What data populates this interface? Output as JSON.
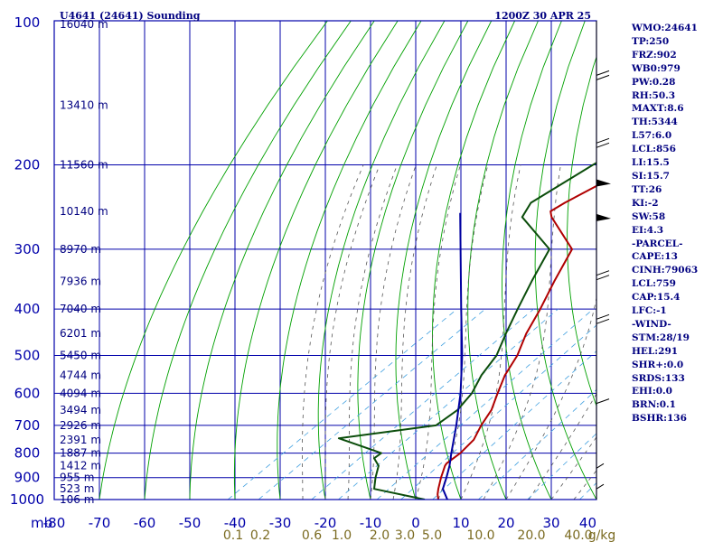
{
  "header": {
    "station": "U4641 (24641) Sounding",
    "valid_time": "1200Z 30 APR 25"
  },
  "indices": [
    "WMO:24641",
    "TP:250",
    "FRZ:902",
    "WB0:979",
    "PW:0.28",
    "RH:50.3",
    "MAXT:8.6",
    "TH:5344",
    "L57:6.0",
    "LCL:856",
    "LI:15.5",
    "SI:15.7",
    "TT:26",
    "KI:-2",
    "SW:58",
    "EI:4.3",
    "-PARCEL-",
    "CAPE:13",
    "CINH:79063",
    "LCL:759",
    "CAP:15.4",
    "LFC:-1",
    "-WIND-",
    "STM:28/19",
    "HEL:291",
    "SHR+:0.0",
    "SRDS:133",
    "EHI:0.0",
    "BRN:0.1",
    "BSHR:136"
  ],
  "chart_data": {
    "type": "skew-t log-p sounding",
    "title": "U4641 (24641) Sounding",
    "xlabel": "",
    "ylabel": "mb",
    "pressure_axis": {
      "unit_label": "mb",
      "scale": "log",
      "range": [
        100,
        1000
      ],
      "ticks": [
        100,
        200,
        300,
        400,
        500,
        600,
        700,
        800,
        900,
        1000
      ]
    },
    "temperature_axis": {
      "range": [
        -80,
        40
      ],
      "ticks": [
        -80,
        -70,
        -60,
        -50,
        -40,
        -30,
        -20,
        -10,
        0,
        10,
        20,
        30,
        40
      ],
      "tick_labels": [
        "-80",
        "-70",
        "-60",
        "-50",
        "-40",
        "-30",
        "-20",
        "-10",
        "0",
        "10",
        "20",
        "30",
        "40"
      ]
    },
    "height_labels": [
      {
        "p": 100,
        "label": "16040 m"
      },
      {
        "p": 150,
        "label": "13410 m"
      },
      {
        "p": 200,
        "label": "11560 m"
      },
      {
        "p": 250,
        "label": "10140 m"
      },
      {
        "p": 300,
        "label": "8970 m"
      },
      {
        "p": 350,
        "label": "7936 m"
      },
      {
        "p": 400,
        "label": "7040 m"
      },
      {
        "p": 450,
        "label": "6201 m"
      },
      {
        "p": 500,
        "label": "5450 m"
      },
      {
        "p": 550,
        "label": "4744 m"
      },
      {
        "p": 600,
        "label": "4094 m"
      },
      {
        "p": 650,
        "label": "3494 m"
      },
      {
        "p": 700,
        "label": "2926 m"
      },
      {
        "p": 750,
        "label": "2391 m"
      },
      {
        "p": 800,
        "label": "1887 m"
      },
      {
        "p": 850,
        "label": "1412 m"
      },
      {
        "p": 900,
        "label": "955 m"
      },
      {
        "p": 950,
        "label": "523 m"
      },
      {
        "p": 1000,
        "label": "106 m"
      }
    ],
    "mixing_ratio_labels": [
      "0.1",
      "0.2",
      "0.6",
      "1.0",
      "2.0",
      "3.0",
      "5.0",
      "10.0",
      "20.0",
      "40.0",
      "g/kg"
    ],
    "mixing_ratio_values": [
      0.1,
      0.2,
      0.6,
      1.0,
      2.0,
      3.0,
      5.0,
      10.0,
      20.0,
      40.0
    ],
    "series": [
      {
        "key": "temperature",
        "color": "#b00000",
        "points": [
          [
            101,
            -53
          ],
          [
            105,
            -53
          ],
          [
            112,
            -52.5
          ],
          [
            150,
            -53
          ],
          [
            190,
            -53
          ],
          [
            205,
            -55.5
          ],
          [
            240,
            -59
          ],
          [
            250,
            -59.5
          ],
          [
            257,
            -57.5
          ],
          [
            300,
            -43
          ],
          [
            350,
            -37
          ],
          [
            400,
            -31.5
          ],
          [
            450,
            -27
          ],
          [
            500,
            -22.2
          ],
          [
            550,
            -18.8
          ],
          [
            600,
            -14.8
          ],
          [
            650,
            -11
          ],
          [
            700,
            -8.5
          ],
          [
            750,
            -5.7
          ],
          [
            800,
            -4.5
          ],
          [
            840,
            -4.4
          ],
          [
            850,
            -4
          ],
          [
            900,
            -1.2
          ],
          [
            950,
            1.7
          ],
          [
            975,
            3.2
          ],
          [
            1000,
            5
          ]
        ]
      },
      {
        "key": "dewpoint",
        "color": "#0b4d0b",
        "points": [
          [
            101,
            -74
          ],
          [
            150,
            -66
          ],
          [
            180,
            -63
          ],
          [
            200,
            -64.5
          ],
          [
            240,
            -66.5
          ],
          [
            257,
            -64
          ],
          [
            300,
            -48
          ],
          [
            350,
            -42
          ],
          [
            400,
            -36.5
          ],
          [
            450,
            -31.5
          ],
          [
            500,
            -26.8
          ],
          [
            550,
            -24
          ],
          [
            600,
            -20.5
          ],
          [
            650,
            -18.5
          ],
          [
            700,
            -18.5
          ],
          [
            745,
            -36
          ],
          [
            800,
            -22
          ],
          [
            820,
            -22
          ],
          [
            850,
            -18.7
          ],
          [
            900,
            -15.7
          ],
          [
            950,
            -12.5
          ],
          [
            1000,
            2
          ]
        ]
      },
      {
        "key": "parcel",
        "color": "#0000a0",
        "points": [
          [
            252,
            -79
          ],
          [
            400,
            -49
          ],
          [
            500,
            -34.4
          ],
          [
            600,
            -23
          ],
          [
            700,
            -14
          ],
          [
            800,
            -6.5
          ],
          [
            850,
            -3
          ],
          [
            900,
            0
          ],
          [
            950,
            2.7
          ],
          [
            1000,
            7
          ]
        ]
      }
    ],
    "wind_barb_levels": [
      {
        "p": 130,
        "speed_kt": 20
      },
      {
        "p": 180,
        "speed_kt": 20
      },
      {
        "p": 220,
        "speed_kt": 50
      },
      {
        "p": 260,
        "speed_kt": 50
      },
      {
        "p": 340,
        "speed_kt": 20
      },
      {
        "p": 420,
        "speed_kt": 20
      },
      {
        "p": 630,
        "speed_kt": 10
      },
      {
        "p": 860,
        "speed_kt": 5
      },
      {
        "p": 950,
        "speed_kt": 5
      }
    ],
    "colors": {
      "frame": "#0000aa",
      "isotherm": "#0000aa",
      "dry_adiabat": "#00a000",
      "moist_adiabat": "#555555",
      "mixing_ratio": "#40a0e0",
      "temperature": "#b00000",
      "dewpoint": "#0b4d0b",
      "parcel": "#0000a0",
      "indices_text": "#000080",
      "mixing_ratio_text": "#7a6a20"
    }
  }
}
